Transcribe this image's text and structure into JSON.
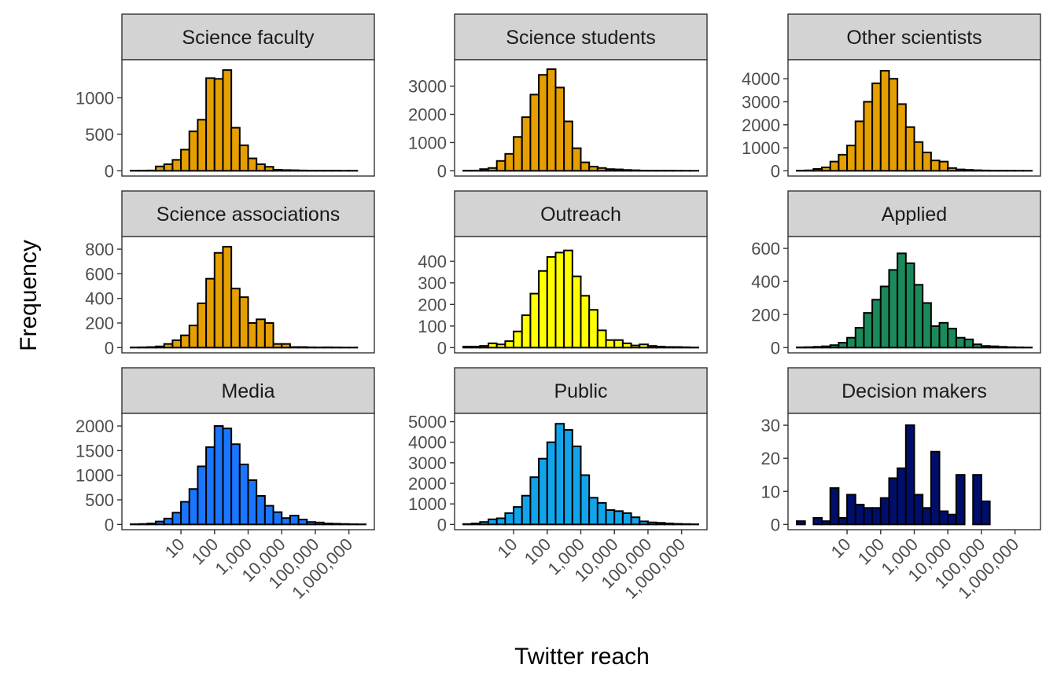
{
  "chart_data": {
    "type": "bar",
    "title": "",
    "xlabel": "Twitter reach",
    "ylabel": "Frequency",
    "x_scale": "log10",
    "x_tick_labels": [
      "10",
      "100",
      "1,000",
      "10,000",
      "100,000",
      "1,000,000"
    ],
    "x_tick_values": [
      10,
      100,
      1000,
      10000,
      100000,
      1000000
    ],
    "grid": false,
    "legend": "none",
    "bin_count": 28,
    "bin_log10_range": [
      -0.5,
      6.5
    ],
    "panels": [
      {
        "title": "Science faculty",
        "color": "#E69F00",
        "ylim": [
          0,
          1450
        ],
        "y_ticks": [
          0,
          500,
          1000
        ],
        "y_tick_labels": [
          "0",
          "500",
          "1000"
        ],
        "values": [
          2,
          3,
          5,
          60,
          90,
          150,
          290,
          540,
          700,
          1270,
          1260,
          1380,
          590,
          350,
          170,
          90,
          55,
          15,
          10,
          8,
          5,
          3,
          2,
          2,
          2,
          1,
          1,
          0
        ]
      },
      {
        "title": "Science students",
        "color": "#E69F00",
        "ylim": [
          0,
          3750
        ],
        "y_ticks": [
          0,
          1000,
          2000,
          3000
        ],
        "y_tick_labels": [
          "0",
          "1000",
          "2000",
          "3000"
        ],
        "values": [
          5,
          10,
          60,
          100,
          350,
          600,
          1200,
          1900,
          2700,
          3400,
          3600,
          2950,
          1750,
          800,
          300,
          150,
          100,
          60,
          50,
          30,
          20,
          10,
          8,
          5,
          5,
          3,
          2,
          1
        ]
      },
      {
        "title": "Other scientists",
        "color": "#E69F00",
        "ylim": [
          0,
          4600
        ],
        "y_ticks": [
          0,
          1000,
          2000,
          3000,
          4000
        ],
        "y_tick_labels": [
          "0",
          "1000",
          "2000",
          "3000",
          "4000"
        ],
        "values": [
          10,
          20,
          80,
          150,
          400,
          700,
          1100,
          2150,
          3000,
          3800,
          4350,
          4000,
          2900,
          1900,
          1250,
          800,
          450,
          400,
          120,
          60,
          40,
          25,
          15,
          10,
          8,
          5,
          3,
          2
        ]
      },
      {
        "title": "Science associations",
        "color": "#E69F00",
        "ylim": [
          0,
          860
        ],
        "y_ticks": [
          0,
          200,
          400,
          600,
          800
        ],
        "y_tick_labels": [
          "0",
          "200",
          "400",
          "600",
          "800"
        ],
        "values": [
          2,
          3,
          5,
          10,
          30,
          60,
          100,
          180,
          360,
          560,
          770,
          820,
          480,
          410,
          200,
          230,
          200,
          30,
          30,
          5,
          5,
          3,
          2,
          3,
          2,
          1,
          1,
          0
        ]
      },
      {
        "title": "Outreach",
        "color": "#FFFF00",
        "ylim": [
          0,
          490
        ],
        "y_ticks": [
          0,
          100,
          200,
          300,
          400
        ],
        "y_tick_labels": [
          "0",
          "100",
          "200",
          "300",
          "400"
        ],
        "values": [
          5,
          5,
          8,
          20,
          15,
          30,
          75,
          150,
          250,
          355,
          420,
          440,
          450,
          330,
          240,
          175,
          80,
          35,
          35,
          20,
          10,
          15,
          8,
          5,
          3,
          3,
          2,
          1
        ]
      },
      {
        "title": "Applied",
        "color": "#1B8A5A",
        "ylim": [
          0,
          640
        ],
        "y_ticks": [
          0,
          200,
          400,
          600
        ],
        "y_tick_labels": [
          "0",
          "200",
          "400",
          "600"
        ],
        "values": [
          2,
          3,
          5,
          8,
          15,
          30,
          60,
          120,
          210,
          290,
          370,
          470,
          570,
          510,
          380,
          270,
          130,
          150,
          115,
          60,
          50,
          20,
          10,
          8,
          5,
          3,
          2,
          1
        ]
      },
      {
        "title": "Media",
        "color": "#1A75FF",
        "ylim": [
          0,
          2150
        ],
        "y_ticks": [
          0,
          500,
          1000,
          1500,
          2000
        ],
        "y_tick_labels": [
          "0",
          "500",
          "1000",
          "1500",
          "2000"
        ],
        "values": [
          5,
          10,
          20,
          60,
          120,
          240,
          460,
          720,
          1180,
          1570,
          2000,
          1950,
          1630,
          1220,
          900,
          580,
          380,
          250,
          130,
          180,
          100,
          50,
          40,
          20,
          15,
          10,
          5,
          3
        ]
      },
      {
        "title": "Public",
        "color": "#12A4EB",
        "ylim": [
          0,
          5150
        ],
        "y_ticks": [
          0,
          1000,
          2000,
          3000,
          4000,
          5000
        ],
        "y_tick_labels": [
          "0",
          "1000",
          "2000",
          "3000",
          "4000",
          "5000"
        ],
        "values": [
          20,
          50,
          120,
          250,
          300,
          550,
          850,
          1400,
          2300,
          3200,
          4000,
          4900,
          4600,
          3800,
          2400,
          1300,
          1050,
          700,
          650,
          550,
          350,
          150,
          100,
          80,
          50,
          30,
          20,
          10
        ]
      },
      {
        "title": "Decision makers",
        "color": "#000E6B",
        "ylim": [
          0,
          32
        ],
        "y_ticks": [
          0,
          10,
          20,
          30
        ],
        "y_tick_labels": [
          "0",
          "10",
          "20",
          "30"
        ],
        "values": [
          1,
          0,
          2,
          1,
          11,
          2,
          9,
          6,
          5,
          5,
          8,
          14,
          17,
          30,
          9,
          5,
          22,
          4,
          3,
          15,
          0,
          15,
          7,
          0,
          0,
          0,
          0,
          0
        ]
      }
    ]
  }
}
